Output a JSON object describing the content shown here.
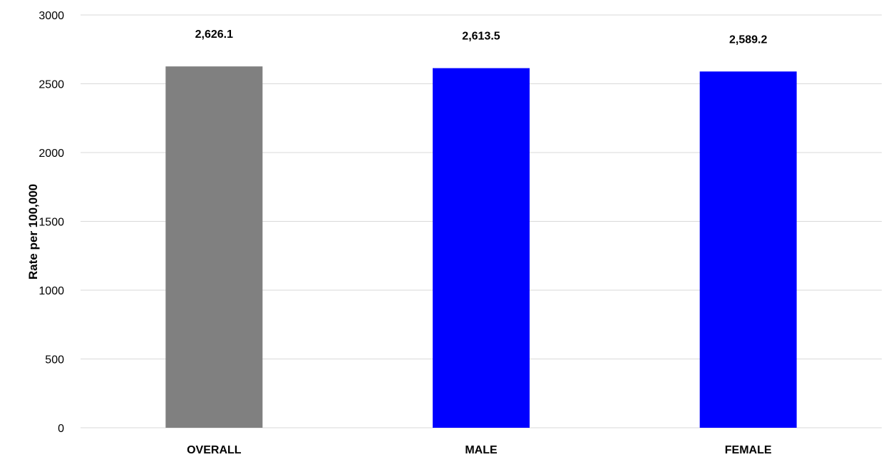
{
  "chart_data": {
    "type": "bar",
    "title": "",
    "xlabel": "",
    "ylabel": "Rate per 100,000",
    "ylim": [
      0,
      3000
    ],
    "yticks": [
      0,
      500,
      1000,
      1500,
      2000,
      2500,
      3000
    ],
    "categories": [
      "OVERALL",
      "MALE",
      "FEMALE"
    ],
    "values": [
      2626.1,
      2613.5,
      2589.2
    ],
    "data_labels": [
      "2,626.1",
      "2,613.5",
      "2,589.2"
    ],
    "bar_colors": [
      "#808080",
      "#0000ff",
      "#0000ff"
    ],
    "grid": true,
    "legend": "none"
  }
}
